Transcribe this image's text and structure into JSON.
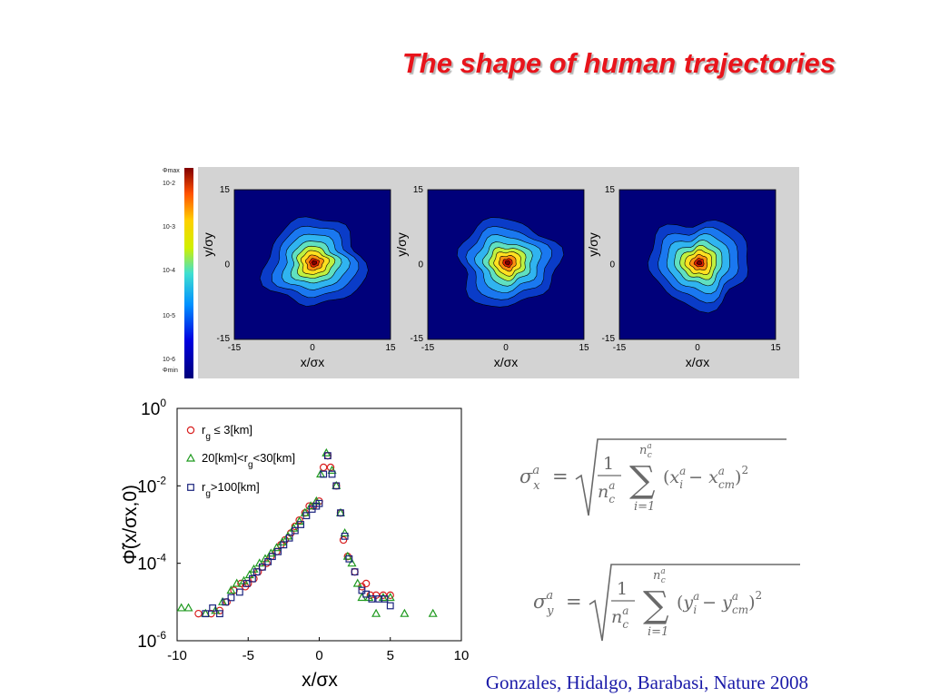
{
  "slide": {
    "title": "The shape of human trajectories",
    "citation": "Gonzales, Hidalgo, Barabasi, Nature 2008"
  },
  "colorbar": {
    "labels": [
      "Φmax",
      "10-2",
      "10-3",
      "10-4",
      "10-5",
      "10-6",
      "Φmin"
    ]
  },
  "heatmap_panels": [
    {
      "ylabel": "y/σy",
      "xlabel": "x/σx",
      "xticks": [
        "-15",
        "0",
        "15"
      ],
      "yticks": [
        "15",
        "0",
        "-15"
      ]
    },
    {
      "ylabel": "y/σy",
      "xlabel": "x/σx",
      "xticks": [
        "-15",
        "0",
        "15"
      ],
      "yticks": [
        "15",
        "0",
        "-15"
      ]
    },
    {
      "ylabel": "y/σy",
      "xlabel": "x/σx",
      "xticks": [
        "-15",
        "0",
        "15"
      ],
      "yticks": [
        "15",
        "0",
        "-15"
      ]
    }
  ],
  "chart_data": [
    {
      "type": "heatmap",
      "panels": 3,
      "x_range": [
        -15,
        15
      ],
      "y_range": [
        -15,
        15
      ],
      "xlabel": "x/σx",
      "ylabel": "y/σy",
      "colorbar": {
        "min_label": "Φmin",
        "max_label": "Φmax",
        "ticks": [
          "10-2",
          "10-3",
          "10-4",
          "10-5",
          "10-6"
        ]
      }
    },
    {
      "type": "scatter",
      "xlabel": "x/σx",
      "ylabel": "Φ̃(x/σx,0)",
      "xlim": [
        -10,
        10
      ],
      "ylim": [
        1e-06,
        1
      ],
      "yscale": "log",
      "xticks": [
        -10,
        -5,
        0,
        5,
        10
      ],
      "yticks": [
        "10^0",
        "10^-2",
        "10^-4",
        "10^-6"
      ],
      "legend_position": "top-left",
      "series": [
        {
          "name": "rg ≤ 3[km]",
          "marker": "circle",
          "color": "#d81e1e",
          "points": [
            [
              -8.5,
              5e-06
            ],
            [
              -7.6,
              5e-06
            ],
            [
              -7,
              6e-06
            ],
            [
              -6.5,
              1e-05
            ],
            [
              -6,
              2e-05
            ],
            [
              -5.5,
              3e-05
            ],
            [
              -5.2,
              2.5e-05
            ],
            [
              -5,
              3e-05
            ],
            [
              -4.6,
              4e-05
            ],
            [
              -4.3,
              6e-05
            ],
            [
              -4,
              8e-05
            ],
            [
              -3.7,
              0.0001
            ],
            [
              -3.4,
              0.00015
            ],
            [
              -3,
              0.0002
            ],
            [
              -2.7,
              0.0003
            ],
            [
              -2.4,
              0.0004
            ],
            [
              -2,
              0.0006
            ],
            [
              -1.7,
              0.0009
            ],
            [
              -1.4,
              0.0013
            ],
            [
              -1,
              0.002
            ],
            [
              -0.7,
              0.003
            ],
            [
              -0.4,
              0.003
            ],
            [
              0,
              0.004
            ],
            [
              0.3,
              0.03
            ],
            [
              0.6,
              0.06
            ],
            [
              0.8,
              0.03
            ],
            [
              1.2,
              0.01
            ],
            [
              1.5,
              0.002
            ],
            [
              1.7,
              0.0004
            ],
            [
              2,
              0.00015
            ],
            [
              2.5,
              6e-05
            ],
            [
              3,
              2.5e-05
            ],
            [
              3.3,
              3e-05
            ],
            [
              3.6,
              1.5e-05
            ],
            [
              4,
              1.5e-05
            ],
            [
              4.5,
              1.5e-05
            ],
            [
              5,
              1.5e-05
            ]
          ]
        },
        {
          "name": "20[km]<rg<30[km]",
          "marker": "triangle",
          "color": "#1f9a1f",
          "points": [
            [
              -9.7,
              7e-06
            ],
            [
              -9.2,
              7e-06
            ],
            [
              -8,
              5e-06
            ],
            [
              -7.3,
              6e-06
            ],
            [
              -6.8,
              1e-05
            ],
            [
              -6.2,
              2e-05
            ],
            [
              -5.8,
              3e-05
            ],
            [
              -5.3,
              3.5e-05
            ],
            [
              -4.9,
              5e-05
            ],
            [
              -4.6,
              7e-05
            ],
            [
              -4.2,
              0.0001
            ],
            [
              -3.8,
              0.00013
            ],
            [
              -3.4,
              0.00018
            ],
            [
              -3,
              0.00025
            ],
            [
              -2.6,
              0.00035
            ],
            [
              -2.2,
              0.0005
            ],
            [
              -1.8,
              0.0008
            ],
            [
              -1.4,
              0.0012
            ],
            [
              -1,
              0.002
            ],
            [
              -0.6,
              0.003
            ],
            [
              -0.2,
              0.004
            ],
            [
              0.1,
              0.02
            ],
            [
              0.5,
              0.07
            ],
            [
              0.9,
              0.025
            ],
            [
              1.2,
              0.01
            ],
            [
              1.5,
              0.002
            ],
            [
              1.8,
              0.0006
            ],
            [
              2,
              0.00015
            ],
            [
              2.3,
              0.0001
            ],
            [
              2.7,
              3e-05
            ],
            [
              3,
              1.3e-05
            ],
            [
              3.5,
              1.3e-05
            ],
            [
              4,
              5e-06
            ],
            [
              4.5,
              1.3e-05
            ],
            [
              5,
              1.3e-05
            ],
            [
              6,
              5e-06
            ],
            [
              8,
              5e-06
            ]
          ]
        },
        {
          "name": "rg>100[km]",
          "marker": "square",
          "color": "#1a237e",
          "points": [
            [
              -8,
              5e-06
            ],
            [
              -7.5,
              7e-06
            ],
            [
              -7,
              5e-06
            ],
            [
              -6.6,
              1e-05
            ],
            [
              -6.2,
              1.3e-05
            ],
            [
              -5.6,
              1.8e-05
            ],
            [
              -5.1,
              3e-05
            ],
            [
              -4.7,
              4e-05
            ],
            [
              -4.4,
              6e-05
            ],
            [
              -4,
              8e-05
            ],
            [
              -3.6,
              0.00011
            ],
            [
              -3.3,
              0.00015
            ],
            [
              -2.9,
              0.0002
            ],
            [
              -2.5,
              0.0003
            ],
            [
              -2.1,
              0.00045
            ],
            [
              -1.7,
              0.0007
            ],
            [
              -1.3,
              0.001
            ],
            [
              -0.9,
              0.0017
            ],
            [
              -0.5,
              0.0025
            ],
            [
              -0.2,
              0.003
            ],
            [
              0,
              0.0035
            ],
            [
              0.3,
              0.02
            ],
            [
              0.6,
              0.06
            ],
            [
              0.9,
              0.02
            ],
            [
              1.2,
              0.01
            ],
            [
              1.5,
              0.002
            ],
            [
              1.8,
              0.0005
            ],
            [
              2.1,
              0.00013
            ],
            [
              2.5,
              6e-05
            ],
            [
              3,
              2e-05
            ],
            [
              3.3,
              1.6e-05
            ],
            [
              3.7,
              1.2e-05
            ],
            [
              4.2,
              1.2e-05
            ],
            [
              4.6,
              1.2e-05
            ],
            [
              5,
              8e-06
            ]
          ]
        }
      ]
    }
  ],
  "formulas": [
    {
      "lhs_base": "σ",
      "lhs_sup": "a",
      "lhs_sub": "x",
      "frac_num": "1",
      "frac_den_base": "n",
      "frac_den_sub": "c",
      "frac_den_sup": "a",
      "sum_top_base": "n",
      "sum_top_sub": "c",
      "sum_top_sup": "a",
      "sum_bottom": "i=1",
      "term_var": "x",
      "term_cm": "cm"
    },
    {
      "lhs_base": "σ",
      "lhs_sup": "a",
      "lhs_sub": "y",
      "frac_num": "1",
      "frac_den_base": "n",
      "frac_den_sub": "c",
      "frac_den_sup": "a",
      "sum_top_base": "n",
      "sum_top_sub": "c",
      "sum_top_sup": "a",
      "sum_bottom": "i=1",
      "term_var": "y",
      "term_cm": "cm"
    }
  ]
}
